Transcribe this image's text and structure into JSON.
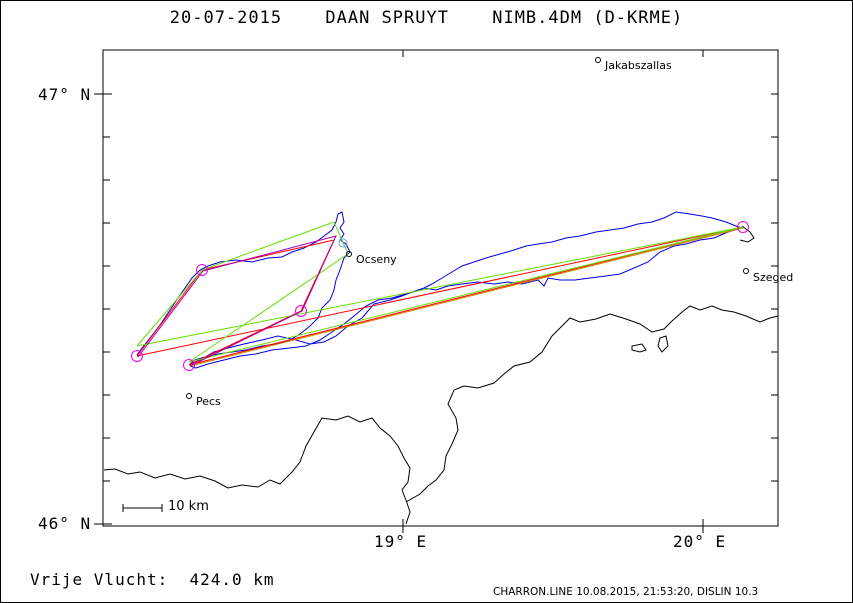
{
  "title": {
    "date": "20-07-2015",
    "pilot": "DAAN SPRUYT",
    "glider": "NIMB.4DM (D-KRME)"
  },
  "axes": {
    "lat_labels": [
      "47° N",
      "46° N"
    ],
    "lon_labels": [
      "19° E",
      "20° E"
    ]
  },
  "cities": [
    {
      "name": "Jakabszallas"
    },
    {
      "name": "Ocseny"
    },
    {
      "name": "Szeged"
    },
    {
      "name": "Pecs"
    }
  ],
  "scale_bar": {
    "label": "10 km"
  },
  "footer": {
    "distance": "Vrije Vlucht:  424.0 km",
    "credit": "CHARRON.LINE 10.08.2015, 21:53:20, DISLIN 10.3"
  },
  "colors": {
    "track": "#0000e0",
    "route_red": "#ff0000",
    "route_green": "#66dd00",
    "route_purple": "#aa00aa",
    "turnpoint": "#ee00ee",
    "border": "#000000"
  }
}
